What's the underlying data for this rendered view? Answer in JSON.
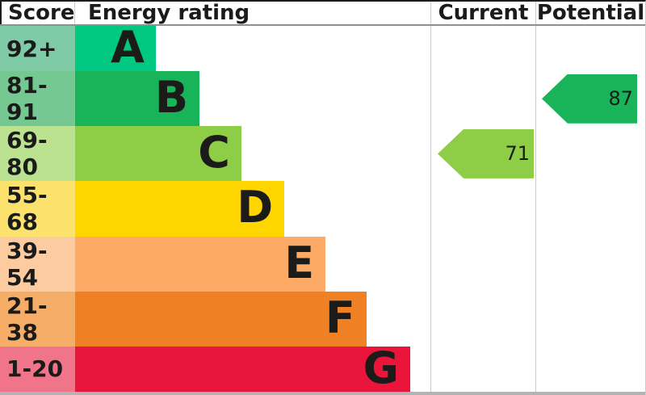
{
  "header": {
    "score": "Score",
    "rating": "Energy rating",
    "current": "Current",
    "potential": "Potential"
  },
  "chart_data": {
    "type": "bar",
    "title": "Energy rating (EPC)",
    "xlabel": "Score",
    "legend": [
      "Current",
      "Potential"
    ],
    "bands": [
      {
        "letter": "A",
        "score": "92+",
        "color": "#00c781",
        "tint": "#7fcba8",
        "width_pct": 22.7
      },
      {
        "letter": "B",
        "score": "81-91",
        "color": "#19b459",
        "tint": "#76c893",
        "width_pct": 35.0
      },
      {
        "letter": "C",
        "score": "69-80",
        "color": "#8dce46",
        "tint": "#bbe290",
        "width_pct": 46.8
      },
      {
        "letter": "D",
        "score": "55-68",
        "color": "#ffd500",
        "tint": "#fae26c",
        "width_pct": 58.9
      },
      {
        "letter": "E",
        "score": "39-54",
        "color": "#fcaa65",
        "tint": "#fdcba0",
        "width_pct": 70.5
      },
      {
        "letter": "F",
        "score": "21-38",
        "color": "#ef8023",
        "tint": "#f5ad67",
        "width_pct": 82.0
      },
      {
        "letter": "G",
        "score": "1-20",
        "color": "#e9153b",
        "tint": "#f0758a",
        "width_pct": 94.3
      }
    ],
    "current": {
      "value": 71,
      "band": "C",
      "color": "#8dce46"
    },
    "potential": {
      "value": 87,
      "band": "B",
      "color": "#19b459"
    }
  }
}
